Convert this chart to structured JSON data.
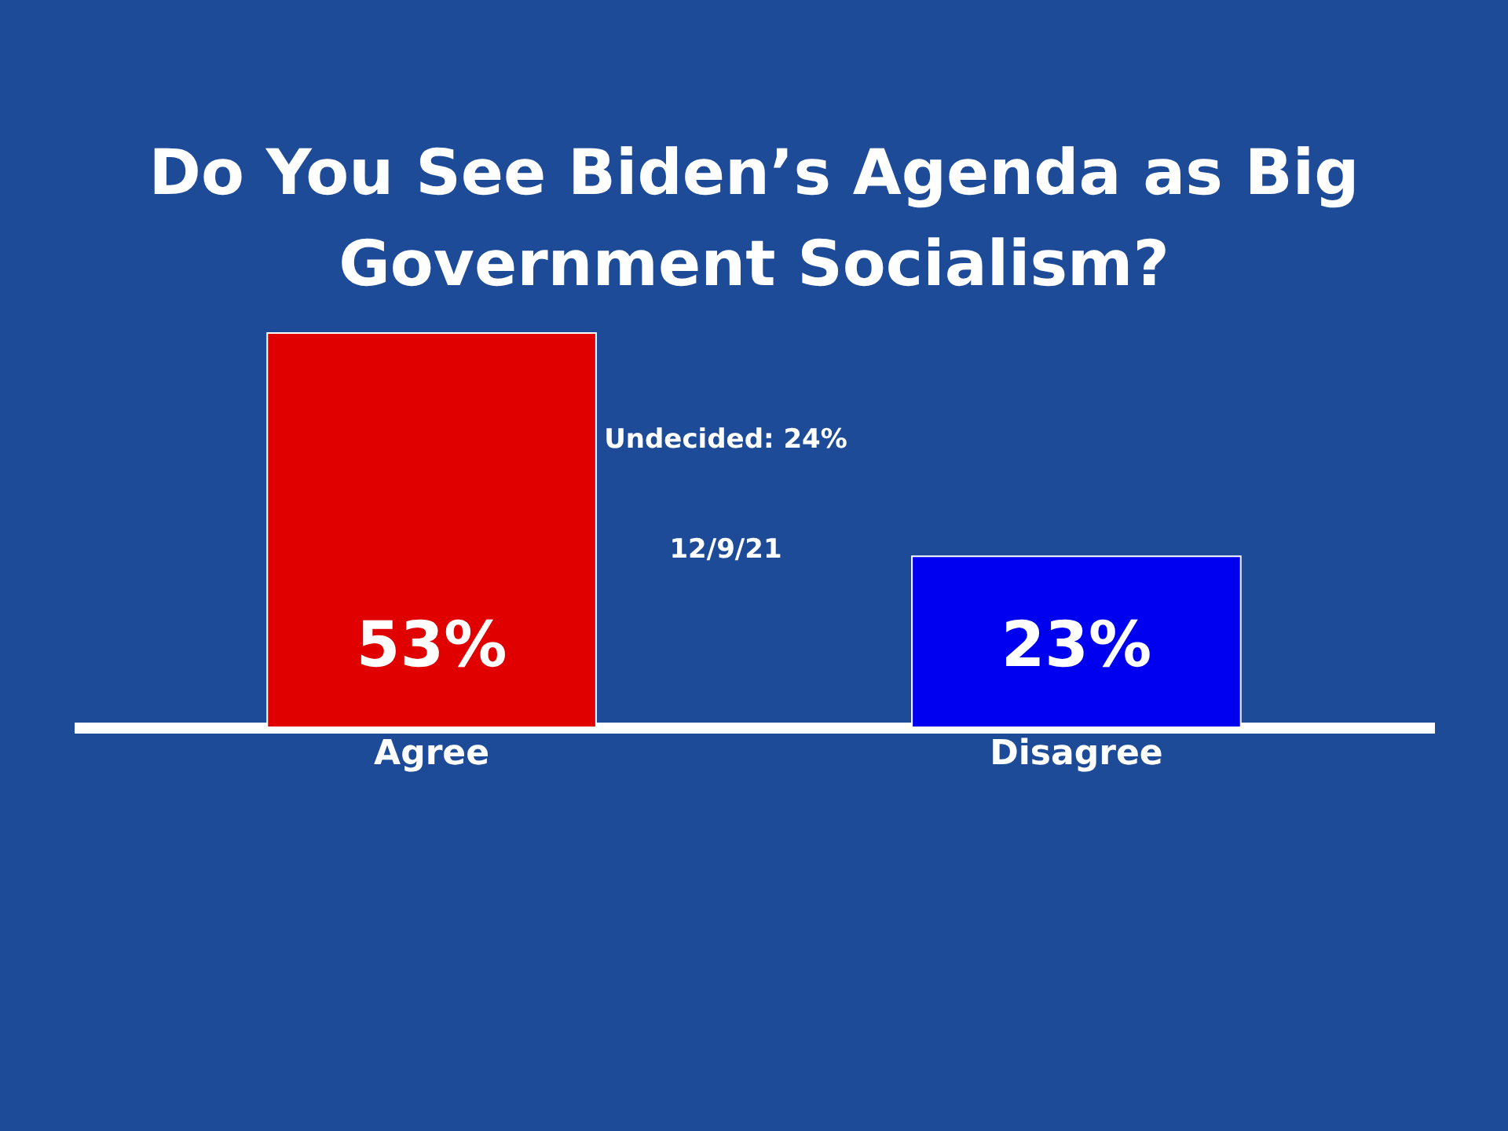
{
  "chart_data": {
    "type": "bar",
    "title": "Do You See Biden’s Agenda as Big Government Socialism?",
    "categories": [
      "Agree",
      "Disagree"
    ],
    "values": [
      53,
      23
    ],
    "colors": [
      "#e00000",
      "#0000f0"
    ],
    "value_labels": [
      "53%",
      "23%"
    ],
    "annotations": [
      "Undecided: 24%",
      "12/9/21"
    ]
  }
}
